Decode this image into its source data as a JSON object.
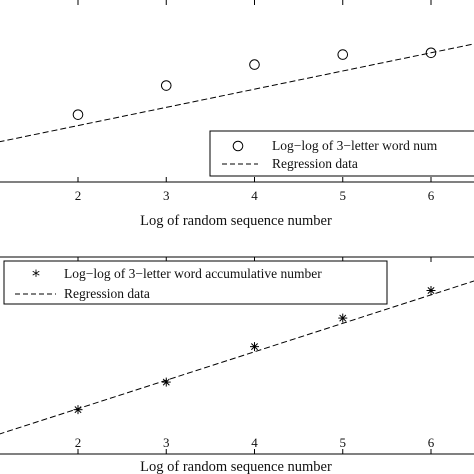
{
  "chart_data": [
    {
      "type": "scatter",
      "x_ticks": [
        2,
        3,
        4,
        5,
        6
      ],
      "xlim": [
        1.1,
        6.5
      ],
      "ylim": [
        0,
        2
      ],
      "xlabel": "Log of random sequence number",
      "series": [
        {
          "name": "Log−log of 3−letter word num",
          "marker": "circle",
          "x": [
            2,
            3,
            4,
            5,
            6
          ],
          "y": [
            0.74,
            1.06,
            1.29,
            1.4,
            1.42
          ]
        },
        {
          "name": "Regression data",
          "style": "dashed-line",
          "x": [
            1.1,
            6.5
          ],
          "y": [
            0.44,
            1.52
          ]
        }
      ],
      "legend_position": "bottom-right"
    },
    {
      "type": "scatter",
      "x_ticks": [
        2,
        3,
        4,
        5,
        6
      ],
      "xlim": [
        1.1,
        6.5
      ],
      "ylim": [
        0,
        2
      ],
      "xlabel": "Log of random sequence number",
      "series": [
        {
          "name": "Log−log of 3−letter word accumulative number",
          "marker": "asterisk",
          "x": [
            2,
            3,
            4,
            5,
            6
          ],
          "y": [
            0.45,
            0.73,
            1.09,
            1.38,
            1.66
          ]
        },
        {
          "name": "Regression data",
          "style": "dashed-line",
          "x": [
            1.1,
            6.5
          ],
          "y": [
            0.2,
            1.76
          ]
        }
      ],
      "legend_position": "top-left"
    }
  ],
  "colors": {
    "axes": "#000000",
    "marks": "#000000"
  }
}
